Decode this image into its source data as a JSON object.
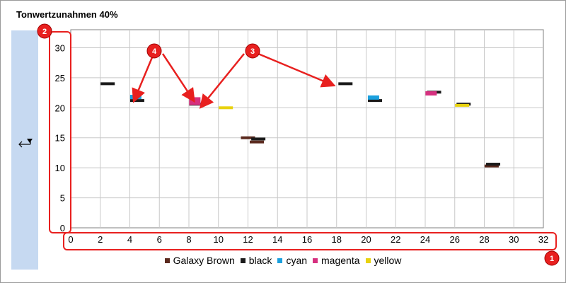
{
  "title": "Tonwertzunahmen 40%",
  "side_panel": {
    "icon": "axis-arrow-icon"
  },
  "chart_data": {
    "type": "scatter",
    "title": "Tonwertzunahmen 40%",
    "xlabel": "",
    "ylabel": "",
    "xlim": [
      0,
      32
    ],
    "ylim": [
      0,
      33
    ],
    "x_ticks": [
      0,
      2,
      4,
      6,
      8,
      10,
      12,
      14,
      16,
      18,
      20,
      22,
      24,
      26,
      28,
      30,
      32
    ],
    "y_ticks": [
      0,
      5,
      10,
      15,
      20,
      25,
      30
    ],
    "grid": true,
    "legend_position": "bottom",
    "series": [
      {
        "name": "Galaxy Brown",
        "color": "#5b2a1e",
        "points": [
          [
            12,
            15
          ],
          [
            12.6,
            14.3
          ],
          [
            28.5,
            10.3
          ]
        ]
      },
      {
        "name": "black",
        "color": "#1a1a1a",
        "points": [
          [
            2.5,
            24
          ],
          [
            4.5,
            21.2
          ],
          [
            8.5,
            20.6
          ],
          [
            12.7,
            14.8
          ],
          [
            18.6,
            24
          ],
          [
            20.6,
            21.2
          ],
          [
            24.6,
            22.6
          ],
          [
            26.6,
            20.6
          ],
          [
            28.6,
            10.6
          ]
        ]
      },
      {
        "name": "cyan",
        "color": "#1ba0de",
        "points": [
          [
            4.4,
            21.8
          ],
          [
            20.5,
            21.7
          ]
        ]
      },
      {
        "name": "magenta",
        "color": "#d6307f",
        "points": [
          [
            8.4,
            21.4
          ],
          [
            8.4,
            20.8
          ],
          [
            24.4,
            22.4
          ]
        ]
      },
      {
        "name": "yellow",
        "color": "#e8d20f",
        "points": [
          [
            10.5,
            20
          ],
          [
            26.5,
            20.4
          ]
        ]
      }
    ]
  },
  "annotations": {
    "markers": [
      {
        "id": "1",
        "label": "1"
      },
      {
        "id": "2",
        "label": "2"
      },
      {
        "id": "3",
        "label": "3"
      },
      {
        "id": "4",
        "label": "4"
      }
    ],
    "color": "#e8201f"
  }
}
